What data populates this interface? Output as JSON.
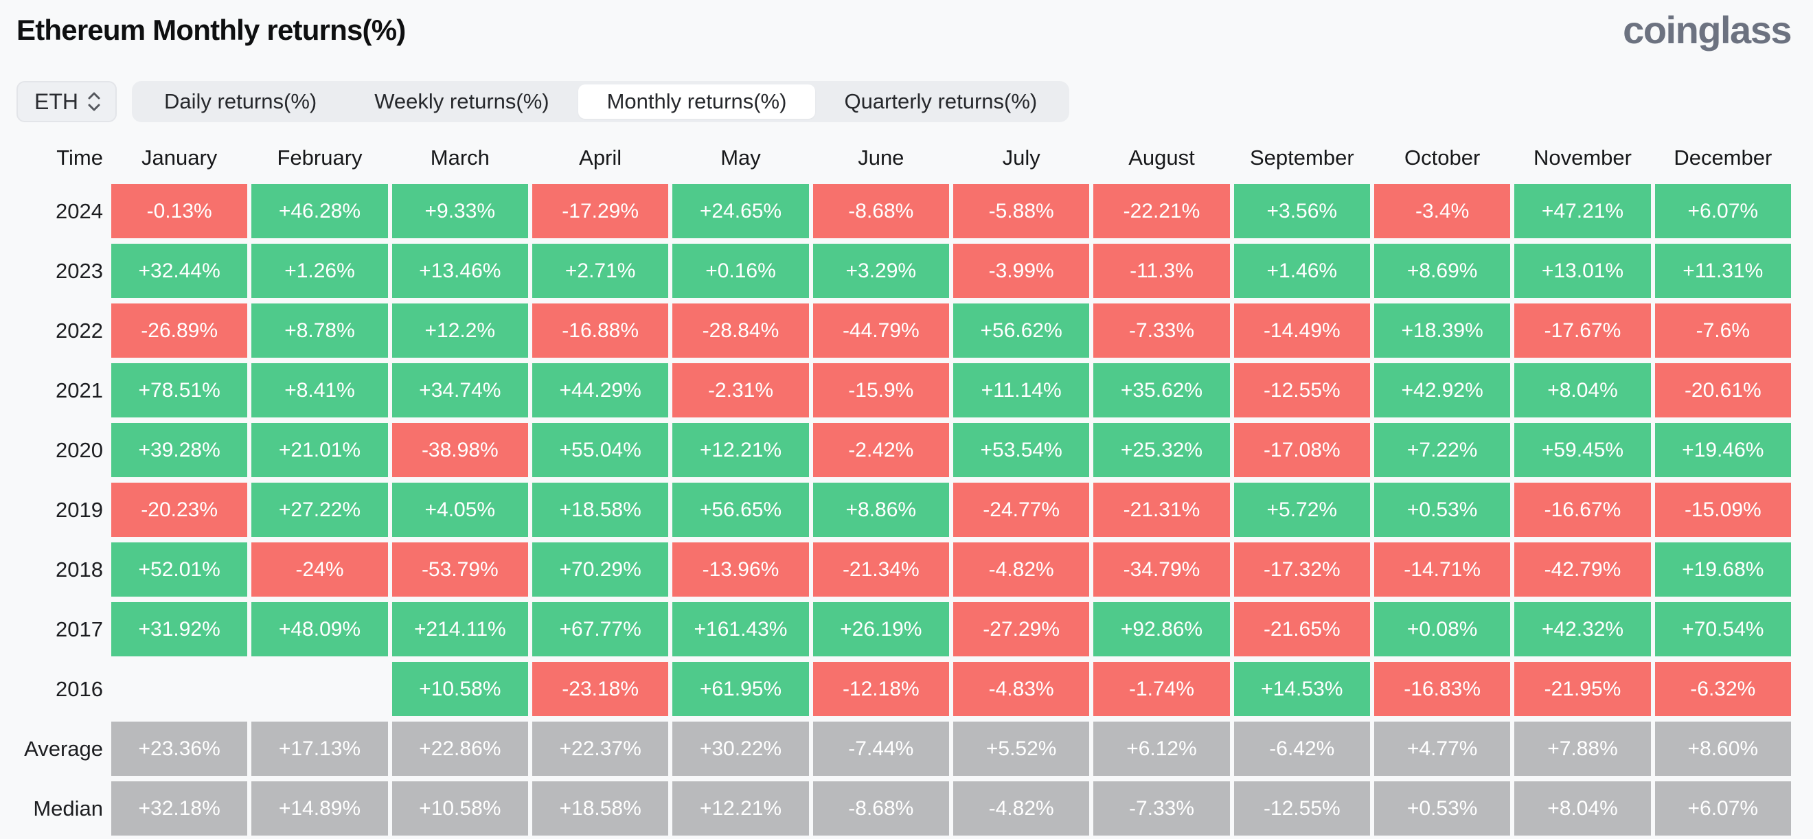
{
  "page": {
    "title": "Ethereum Monthly returns(%)",
    "brand": "coinglass"
  },
  "controls": {
    "symbol": "ETH",
    "tabs": [
      {
        "label": "Daily returns(%)",
        "active": false
      },
      {
        "label": "Weekly returns(%)",
        "active": false
      },
      {
        "label": "Monthly returns(%)",
        "active": true
      },
      {
        "label": "Quarterly returns(%)",
        "active": false
      }
    ]
  },
  "colors": {
    "background": "#f8f9fa",
    "positive": "#4fca8b",
    "negative": "#f7716c",
    "neutral": "#b9babc",
    "cell_text": "#ffffff",
    "brand": "#6c7280",
    "tab_bar": "#ebedf0",
    "tab_active": "#ffffff",
    "chip_bg": "#eef0f3",
    "chip_border": "#e3e5e9"
  },
  "table": {
    "corner_label": "Time",
    "months": [
      "January",
      "February",
      "March",
      "April",
      "May",
      "June",
      "July",
      "August",
      "September",
      "October",
      "November",
      "December"
    ],
    "rows": [
      {
        "label": "2024",
        "type": "year",
        "values": [
          "-0.13%",
          "+46.28%",
          "+9.33%",
          "-17.29%",
          "+24.65%",
          "-8.68%",
          "-5.88%",
          "-22.21%",
          "+3.56%",
          "-3.4%",
          "+47.21%",
          "+6.07%"
        ]
      },
      {
        "label": "2023",
        "type": "year",
        "values": [
          "+32.44%",
          "+1.26%",
          "+13.46%",
          "+2.71%",
          "+0.16%",
          "+3.29%",
          "-3.99%",
          "-11.3%",
          "+1.46%",
          "+8.69%",
          "+13.01%",
          "+11.31%"
        ]
      },
      {
        "label": "2022",
        "type": "year",
        "values": [
          "-26.89%",
          "+8.78%",
          "+12.2%",
          "-16.88%",
          "-28.84%",
          "-44.79%",
          "+56.62%",
          "-7.33%",
          "-14.49%",
          "+18.39%",
          "-17.67%",
          "-7.6%"
        ]
      },
      {
        "label": "2021",
        "type": "year",
        "values": [
          "+78.51%",
          "+8.41%",
          "+34.74%",
          "+44.29%",
          "-2.31%",
          "-15.9%",
          "+11.14%",
          "+35.62%",
          "-12.55%",
          "+42.92%",
          "+8.04%",
          "-20.61%"
        ]
      },
      {
        "label": "2020",
        "type": "year",
        "values": [
          "+39.28%",
          "+21.01%",
          "-38.98%",
          "+55.04%",
          "+12.21%",
          "-2.42%",
          "+53.54%",
          "+25.32%",
          "-17.08%",
          "+7.22%",
          "+59.45%",
          "+19.46%"
        ]
      },
      {
        "label": "2019",
        "type": "year",
        "values": [
          "-20.23%",
          "+27.22%",
          "+4.05%",
          "+18.58%",
          "+56.65%",
          "+8.86%",
          "-24.77%",
          "-21.31%",
          "+5.72%",
          "+0.53%",
          "-16.67%",
          "-15.09%"
        ]
      },
      {
        "label": "2018",
        "type": "year",
        "values": [
          "+52.01%",
          "-24%",
          "-53.79%",
          "+70.29%",
          "-13.96%",
          "-21.34%",
          "-4.82%",
          "-34.79%",
          "-17.32%",
          "-14.71%",
          "-42.79%",
          "+19.68%"
        ]
      },
      {
        "label": "2017",
        "type": "year",
        "values": [
          "+31.92%",
          "+48.09%",
          "+214.11%",
          "+67.77%",
          "+161.43%",
          "+26.19%",
          "-27.29%",
          "+92.86%",
          "-21.65%",
          "+0.08%",
          "+42.32%",
          "+70.54%"
        ]
      },
      {
        "label": "2016",
        "type": "year",
        "values": [
          null,
          null,
          "+10.58%",
          "-23.18%",
          "+61.95%",
          "-12.18%",
          "-4.83%",
          "-1.74%",
          "+14.53%",
          "-16.83%",
          "-21.95%",
          "-6.32%"
        ]
      },
      {
        "label": "Average",
        "type": "stat",
        "values": [
          "+23.36%",
          "+17.13%",
          "+22.86%",
          "+22.37%",
          "+30.22%",
          "-7.44%",
          "+5.52%",
          "+6.12%",
          "-6.42%",
          "+4.77%",
          "+7.88%",
          "+8.60%"
        ]
      },
      {
        "label": "Median",
        "type": "stat",
        "values": [
          "+32.18%",
          "+14.89%",
          "+10.58%",
          "+18.58%",
          "+12.21%",
          "-8.68%",
          "-4.82%",
          "-7.33%",
          "-12.55%",
          "+0.53%",
          "+8.04%",
          "+6.07%"
        ]
      }
    ]
  }
}
